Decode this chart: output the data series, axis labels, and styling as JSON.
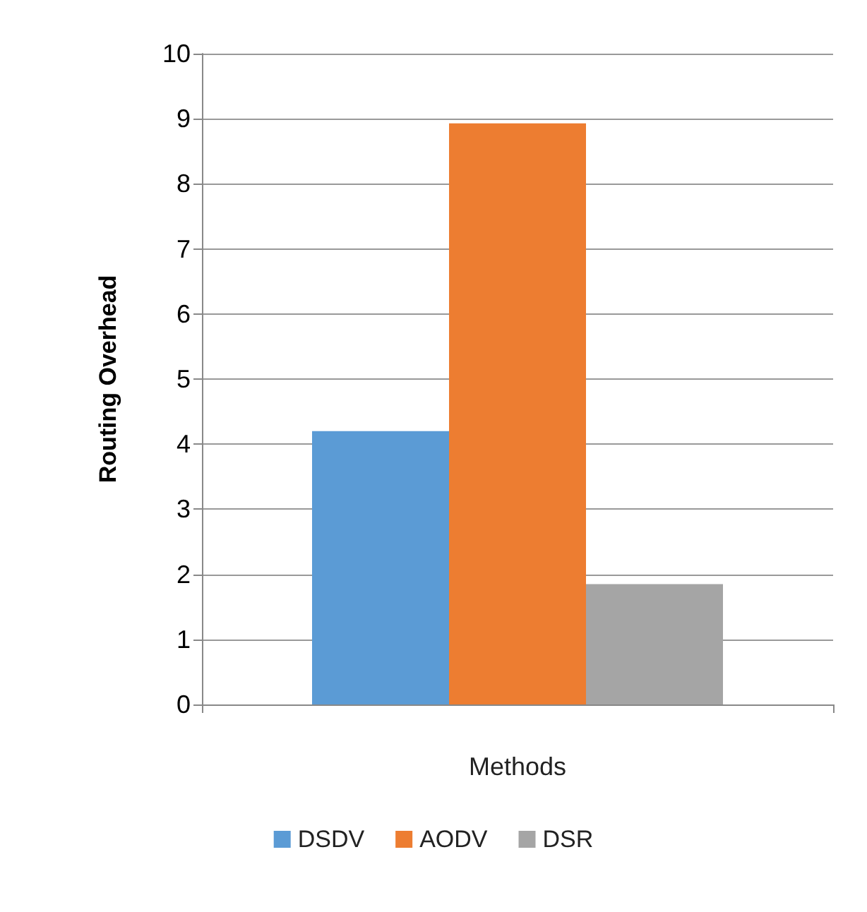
{
  "chart_data": {
    "type": "bar",
    "xlabel": "Methods",
    "ylabel": "Routing Overhead",
    "categories": [
      null
    ],
    "series": [
      {
        "name": "DSDV",
        "color": "#5b9bd5",
        "values": [
          4.2
        ]
      },
      {
        "name": "AODV",
        "color": "#ed7d31",
        "values": [
          8.93
        ]
      },
      {
        "name": "DSR",
        "color": "#a5a5a5",
        "values": [
          1.85
        ]
      }
    ],
    "ylim": [
      0,
      10
    ],
    "yticks": [
      0,
      1,
      2,
      3,
      4,
      5,
      6,
      7,
      8,
      9,
      10
    ],
    "grid": "y",
    "legend": "bottom"
  }
}
